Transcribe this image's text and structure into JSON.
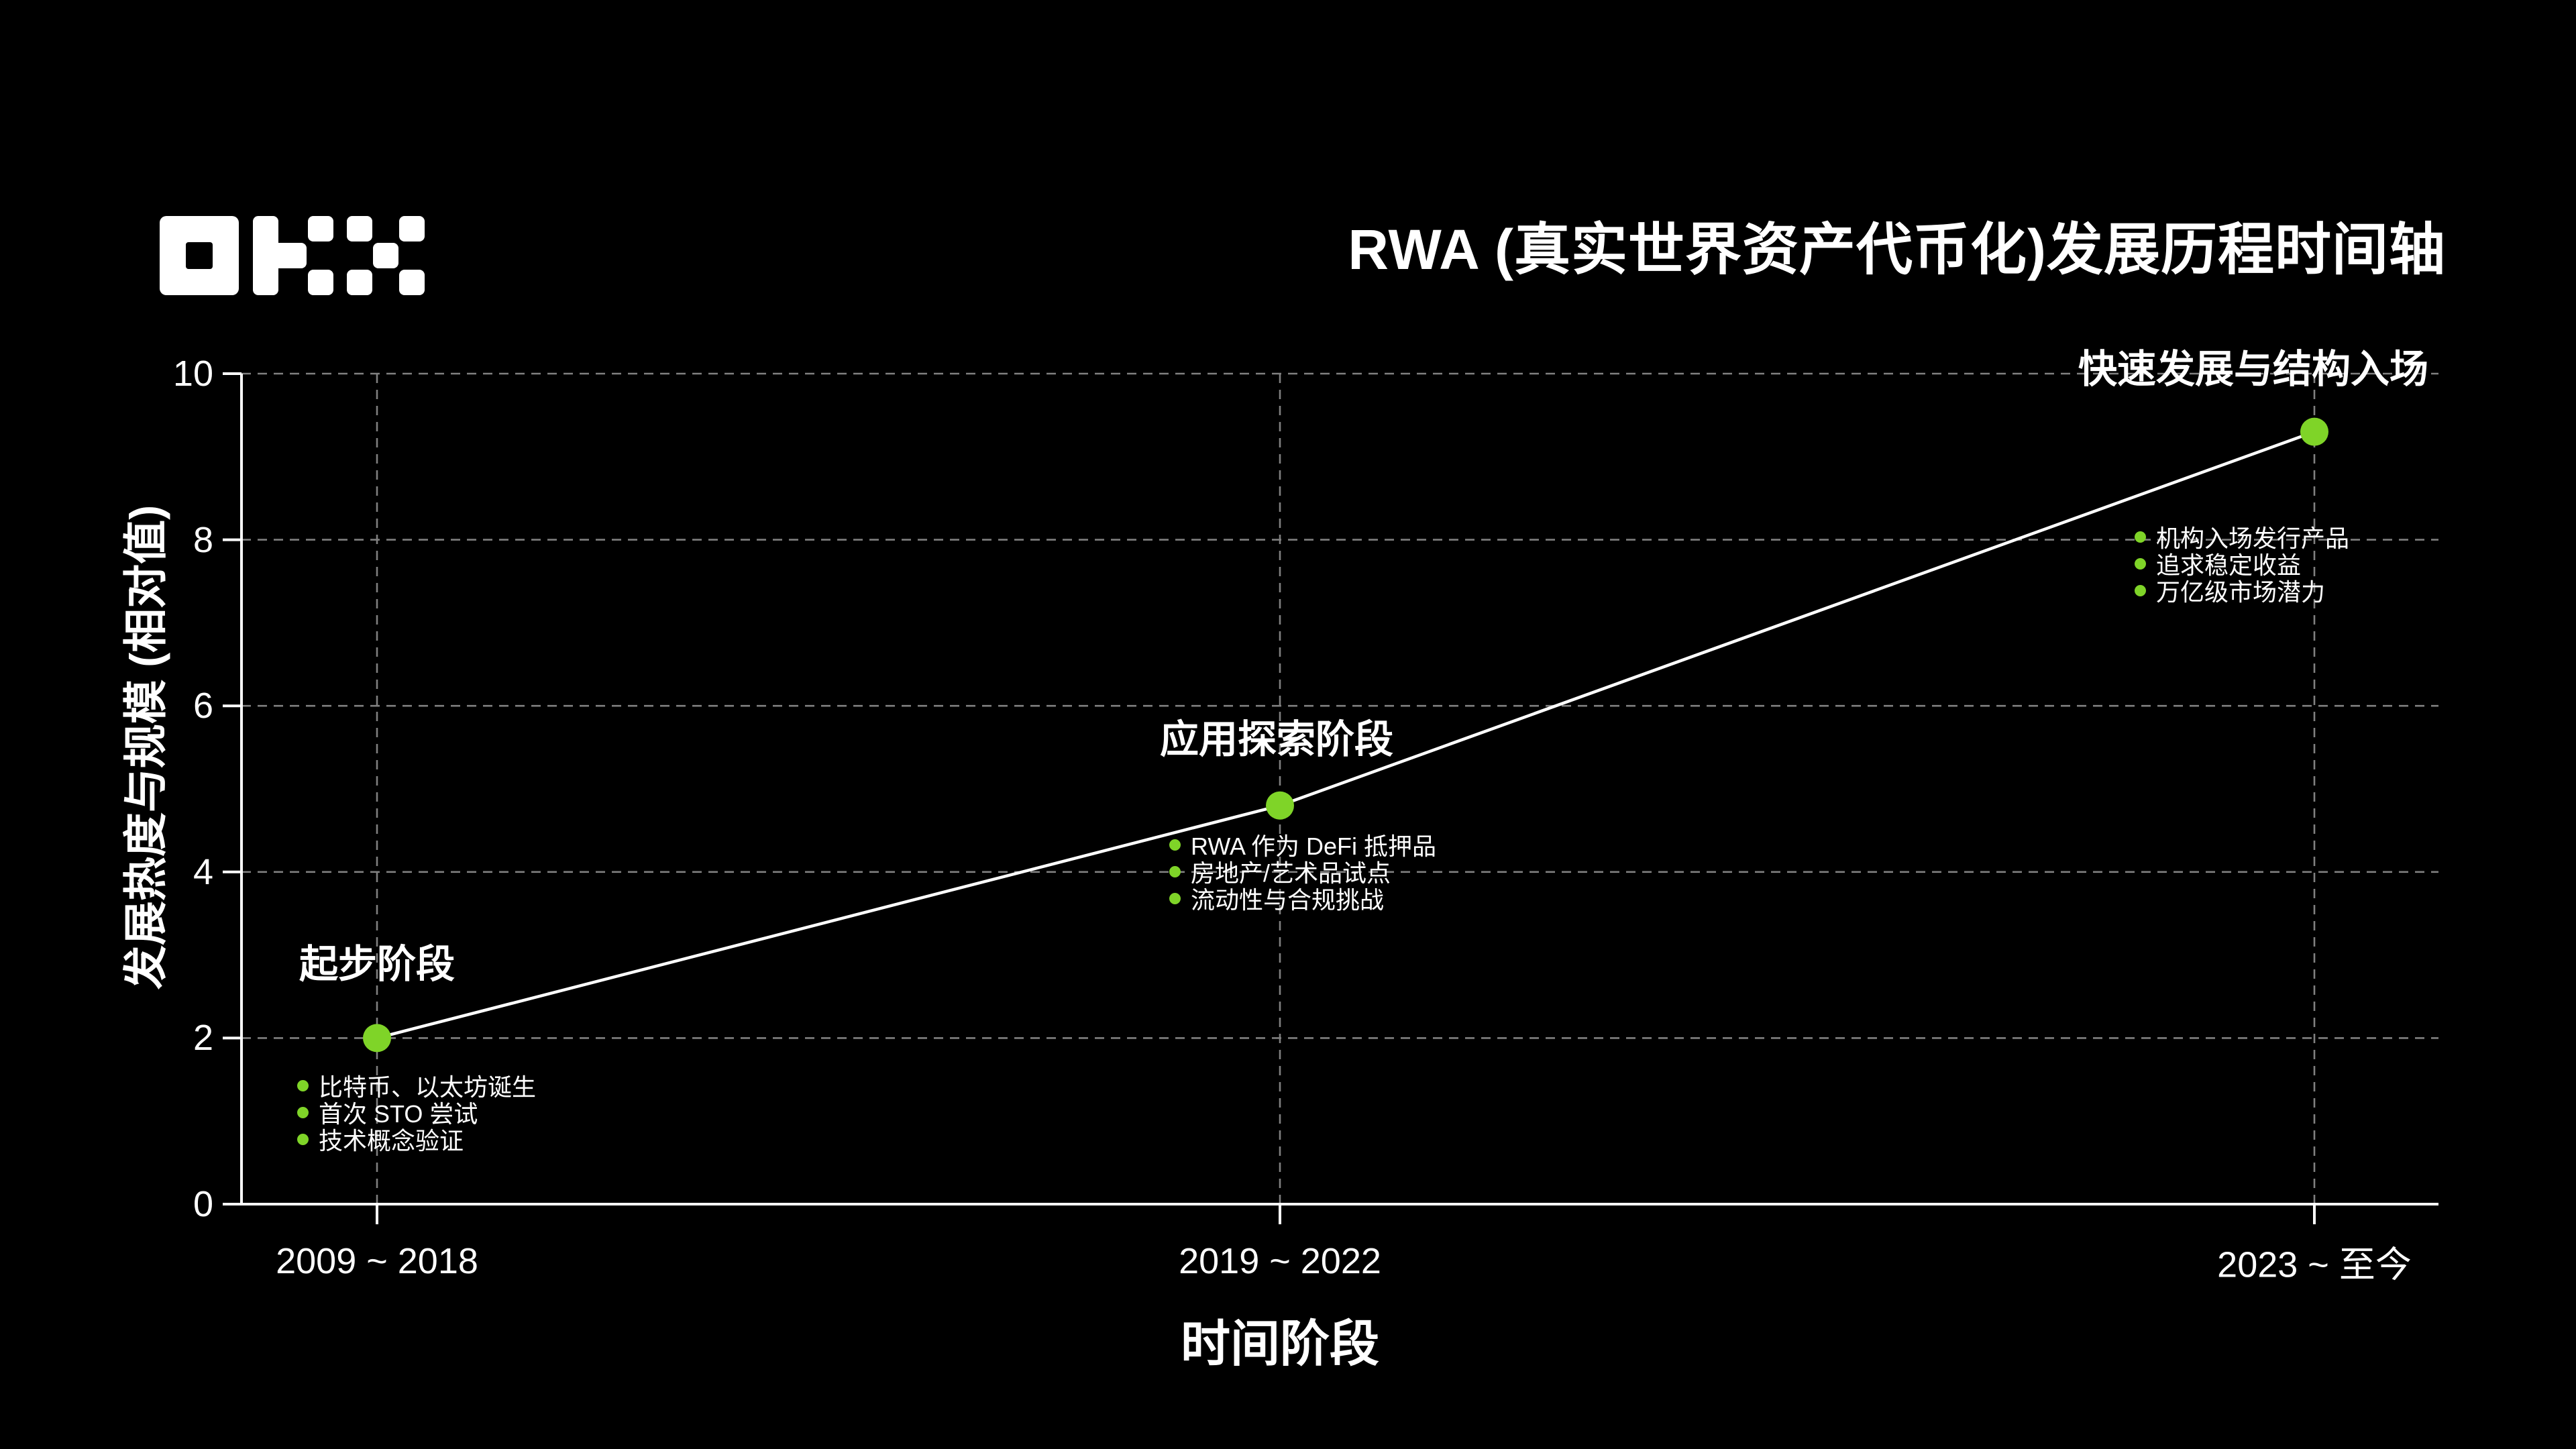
{
  "logo": {
    "brand": "OKX"
  },
  "colors": {
    "background": "#000000",
    "text": "#ffffff",
    "grid": "#808080",
    "axis": "#ffffff",
    "line": "#ffffff",
    "marker": "#7fd428"
  },
  "chart_data": {
    "type": "line",
    "title": "RWA (真实世界资产代币化)发展历程时间轴",
    "xlabel": "时间阶段",
    "ylabel": "发展热度与规模 (相对值)",
    "ylim": [
      0,
      10
    ],
    "ytick_labels": [
      "10",
      "8",
      "6",
      "4",
      "2",
      "0"
    ],
    "grid": "dashed",
    "legend_position": "none",
    "categories": [
      "2009 ~ 2018",
      "2019 ~ 2022",
      "2023 ~ 至今"
    ],
    "values": [
      2,
      4.8,
      9.3
    ],
    "annotations": [
      {
        "label": "起步阶段",
        "period": "2009 ~ 2018",
        "value": 2,
        "bullets": [
          "比特币、以太坊诞生",
          "首次 STO 尝试",
          "技术概念验证"
        ]
      },
      {
        "label": "应用探索阶段",
        "period": "2019 ~ 2022",
        "value": 4.8,
        "bullets": [
          "RWA 作为 DeFi 抵押品",
          "房地产/艺术品试点",
          "流动性与合规挑战"
        ]
      },
      {
        "label": "快速发展与结构入场",
        "period": "2023 ~ 至今",
        "value": 9.3,
        "bullets": [
          "机构入场发行产品",
          "追求稳定收益",
          "万亿级市场潜力"
        ]
      }
    ]
  }
}
